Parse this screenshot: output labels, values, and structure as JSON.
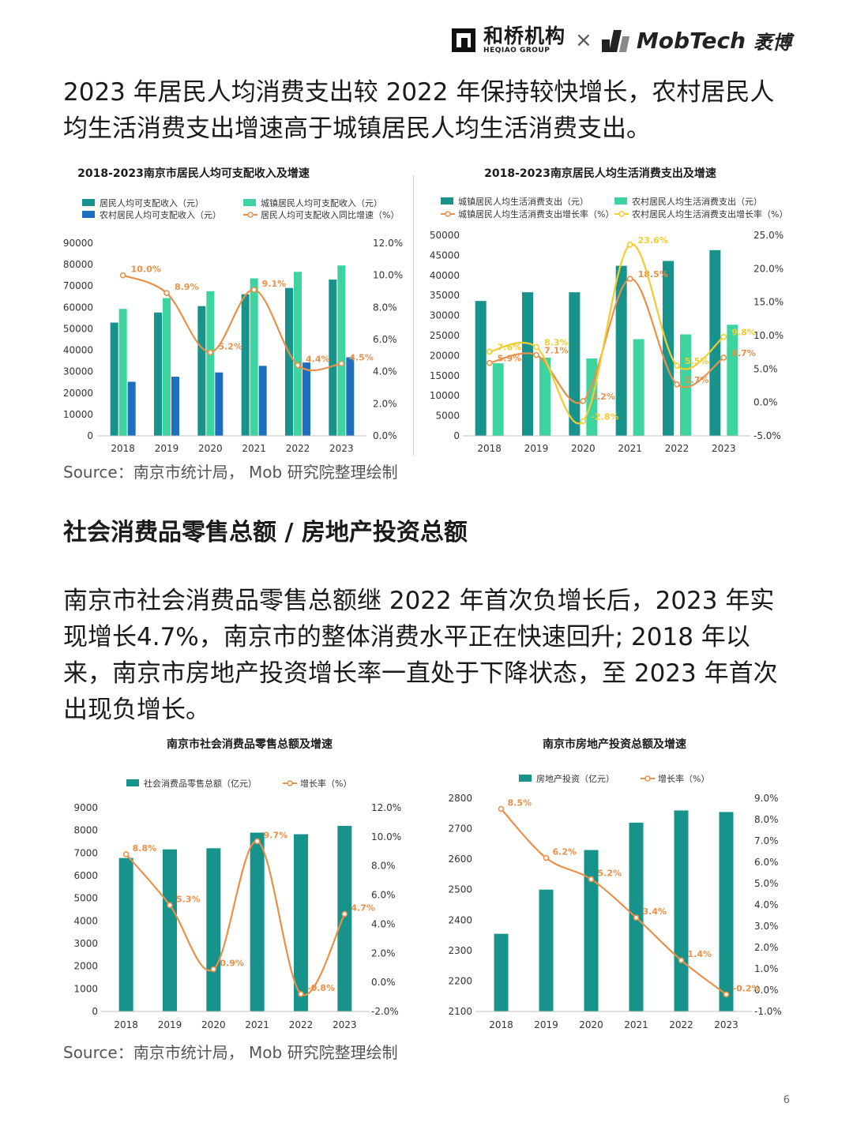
{
  "brand": {
    "heqiao_cn": "和桥机构",
    "heqiao_en": "HEQIAO GROUP",
    "separator": "×",
    "mobtech": "MobTech",
    "mobtech_cn": "袤博"
  },
  "heading1": "2023 年居民人均消费支出较 2022 年保持较快增长，农村居民人均生活消费支出增速高于城镇居民人均生活消费支出。",
  "section_title": "社会消费品零售总额 / 房地产投资总额",
  "heading2": "南京市社会消费品零售总额继 2022 年首次负增长后，2023 年实现增长4.7%，南京市的整体消费水平正在快速回升; 2018 年以来，南京市房地产投资增长率一直处于下降状态，至 2023 年首次出现负增长。",
  "source1": "Source：南京市统计局， Mob 研究院整理绘制",
  "source2": "Source：南京市统计局， Mob 研究院整理绘制",
  "page_number": "6",
  "chart_data": [
    {
      "type": "bar",
      "title": "2018-2023南京市居民人均可支配收入及增速",
      "categories": [
        "2018",
        "2019",
        "2020",
        "2021",
        "2022",
        "2023"
      ],
      "y_ticks": [
        "90000",
        "80000",
        "70000",
        "60000",
        "50000",
        "40000",
        "30000",
        "20000",
        "10000",
        "0"
      ],
      "y2_ticks": [
        "12.0%",
        "10.0%",
        "8.0%",
        "6.0%",
        "4.0%",
        "2.0%",
        "0.0%"
      ],
      "ylim": [
        0,
        90000
      ],
      "y2lim": [
        0,
        12
      ],
      "legend_position": "top",
      "series": [
        {
          "name": "居民人均可支配收入（元）",
          "kind": "bar",
          "color": "#17938c",
          "values": [
            52916,
            57630,
            60606,
            66140,
            69095,
            73000
          ]
        },
        {
          "name": "城镇居民人均可支配收入（元）",
          "kind": "bar",
          "color": "#3ed4a0",
          "values": [
            59308,
            64372,
            67553,
            73593,
            76643,
            79600
          ]
        },
        {
          "name": "农村居民人均可支配收入（元）",
          "kind": "bar",
          "color": "#1f6fbf",
          "values": [
            25263,
            27636,
            29621,
            32701,
            34254,
            36700
          ]
        },
        {
          "name": "居民人均可支配收入同比增速（%）",
          "kind": "line",
          "color": "#e8914a",
          "axis": "right",
          "values": [
            10.0,
            8.9,
            5.2,
            9.1,
            4.4,
            4.5
          ],
          "labels": [
            "10.0%",
            "8.9%",
            "5.2%",
            "9.1%",
            "4.4%",
            "4.5%"
          ]
        }
      ]
    },
    {
      "type": "bar",
      "title": "2018-2023南京居民人均生活消费支出及增速",
      "categories": [
        "2018",
        "2019",
        "2020",
        "2021",
        "2022",
        "2023"
      ],
      "y_ticks": [
        "50000",
        "45000",
        "40000",
        "35000",
        "30000",
        "25000",
        "20000",
        "15000",
        "10000",
        "5000",
        "0"
      ],
      "y2_ticks": [
        "25.0%",
        "20.0%",
        "15.0%",
        "10.0%",
        "5.0%",
        "0.0%",
        "-5.0%"
      ],
      "ylim": [
        0,
        50000
      ],
      "y2lim": [
        -5,
        25
      ],
      "legend_position": "top",
      "series": [
        {
          "name": "城镇居民人均生活消费支出（元）",
          "kind": "bar",
          "color": "#17938c",
          "values": [
            33631,
            35800,
            35800,
            42400,
            43600,
            46300
          ]
        },
        {
          "name": "农村居民人均生活消费支出（元）",
          "kind": "bar",
          "color": "#3ed4a0",
          "values": [
            18100,
            19500,
            19300,
            24100,
            25300,
            27700
          ]
        },
        {
          "name": "城镇居民人均生活消费支出增长率（%）",
          "kind": "line",
          "color": "#e8914a",
          "axis": "right",
          "values": [
            5.9,
            7.1,
            0.2,
            18.5,
            2.7,
            6.7
          ],
          "labels": [
            "5.9%",
            "7.1%",
            "0.2%",
            "18.5%",
            "2.7%",
            "6.7%"
          ]
        },
        {
          "name": "农村居民人均生活消费支出增长率（%）",
          "kind": "line",
          "color": "#f2cc30",
          "axis": "right",
          "values": [
            7.6,
            8.3,
            -2.8,
            23.6,
            5.5,
            9.8
          ],
          "labels": [
            "7.6%",
            "8.3%",
            "-2.8%",
            "23.6%",
            "5.5%",
            "9.8%"
          ]
        }
      ]
    },
    {
      "type": "bar",
      "title": "南京市社会消费品零售总额及增速",
      "categories": [
        "2018",
        "2019",
        "2020",
        "2021",
        "2022",
        "2023"
      ],
      "y_ticks": [
        "9000",
        "8000",
        "7000",
        "6000",
        "5000",
        "4000",
        "3000",
        "2000",
        "1000",
        "0"
      ],
      "y2_ticks": [
        "12.0%",
        "10.0%",
        "8.0%",
        "6.0%",
        "4.0%",
        "2.0%",
        "0.0%",
        "-2.0%"
      ],
      "ylim": [
        0,
        9000
      ],
      "y2lim": [
        -2,
        12
      ],
      "legend_position": "top",
      "series": [
        {
          "name": "社会消费品零售总额（亿元）",
          "kind": "bar",
          "color": "#17938c",
          "values": [
            6780,
            7160,
            7210,
            7900,
            7830,
            8200
          ]
        },
        {
          "name": "增长率（%）",
          "kind": "line",
          "color": "#e8914a",
          "axis": "right",
          "values": [
            8.8,
            5.3,
            0.9,
            9.7,
            -0.8,
            4.7
          ],
          "labels": [
            "8.8%",
            "5.3%",
            "0.9%",
            "9.7%",
            "-0.8%",
            "4.7%"
          ]
        }
      ]
    },
    {
      "type": "bar",
      "title": "南京市房地产投资总额及增速",
      "categories": [
        "2018",
        "2019",
        "2020",
        "2021",
        "2022",
        "2023"
      ],
      "y_ticks": [
        "2800",
        "2700",
        "2600",
        "2500",
        "2400",
        "2300",
        "2200",
        "2100"
      ],
      "y2_ticks": [
        "9.0%",
        "8.0%",
        "7.0%",
        "6.0%",
        "5.0%",
        "4.0%",
        "3.0%",
        "2.0%",
        "1.0%",
        "0.0%",
        "-1.0%"
      ],
      "ylim": [
        2100,
        2800
      ],
      "y2lim": [
        -1,
        9
      ],
      "legend_position": "top",
      "series": [
        {
          "name": "房地产投资（亿元）",
          "kind": "bar",
          "color": "#17938c",
          "values": [
            2355,
            2500,
            2630,
            2720,
            2760,
            2755
          ]
        },
        {
          "name": "增长率（%）",
          "kind": "line",
          "color": "#e8914a",
          "axis": "right",
          "values": [
            8.5,
            6.2,
            5.2,
            3.4,
            1.4,
            -0.2
          ],
          "labels": [
            "8.5%",
            "6.2%",
            "5.2%",
            "3.4%",
            "1.4%",
            "-0.2%"
          ]
        }
      ]
    }
  ]
}
